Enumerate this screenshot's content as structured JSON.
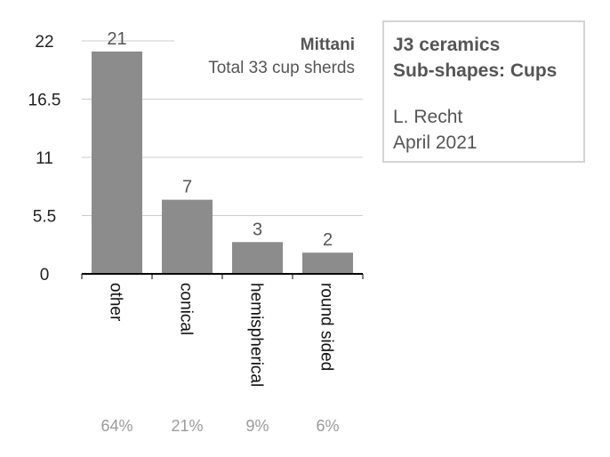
{
  "chart_data": {
    "type": "bar",
    "title": "Mittani",
    "subtitle": "Total 33 cup sherds",
    "categories": [
      "other",
      "conical",
      "hemispherical",
      "round sided"
    ],
    "values": [
      21,
      7,
      3,
      2
    ],
    "value_labels": [
      "21",
      "7",
      "3",
      "2"
    ],
    "percent_labels": [
      "64%",
      "21%",
      "9%",
      "6%"
    ],
    "y_ticks": [
      "0",
      "5.5",
      "11",
      "16.5",
      "22"
    ],
    "y_tick_values": [
      0,
      5.5,
      11,
      16.5,
      22
    ],
    "ylim": [
      0,
      22
    ],
    "grid": true,
    "bar_color": "#8c8c8c"
  },
  "info_box": {
    "line1": "J3 ceramics",
    "line2": "Sub-shapes: Cups",
    "line3": "L. Recht",
    "line4": "April 2021"
  }
}
